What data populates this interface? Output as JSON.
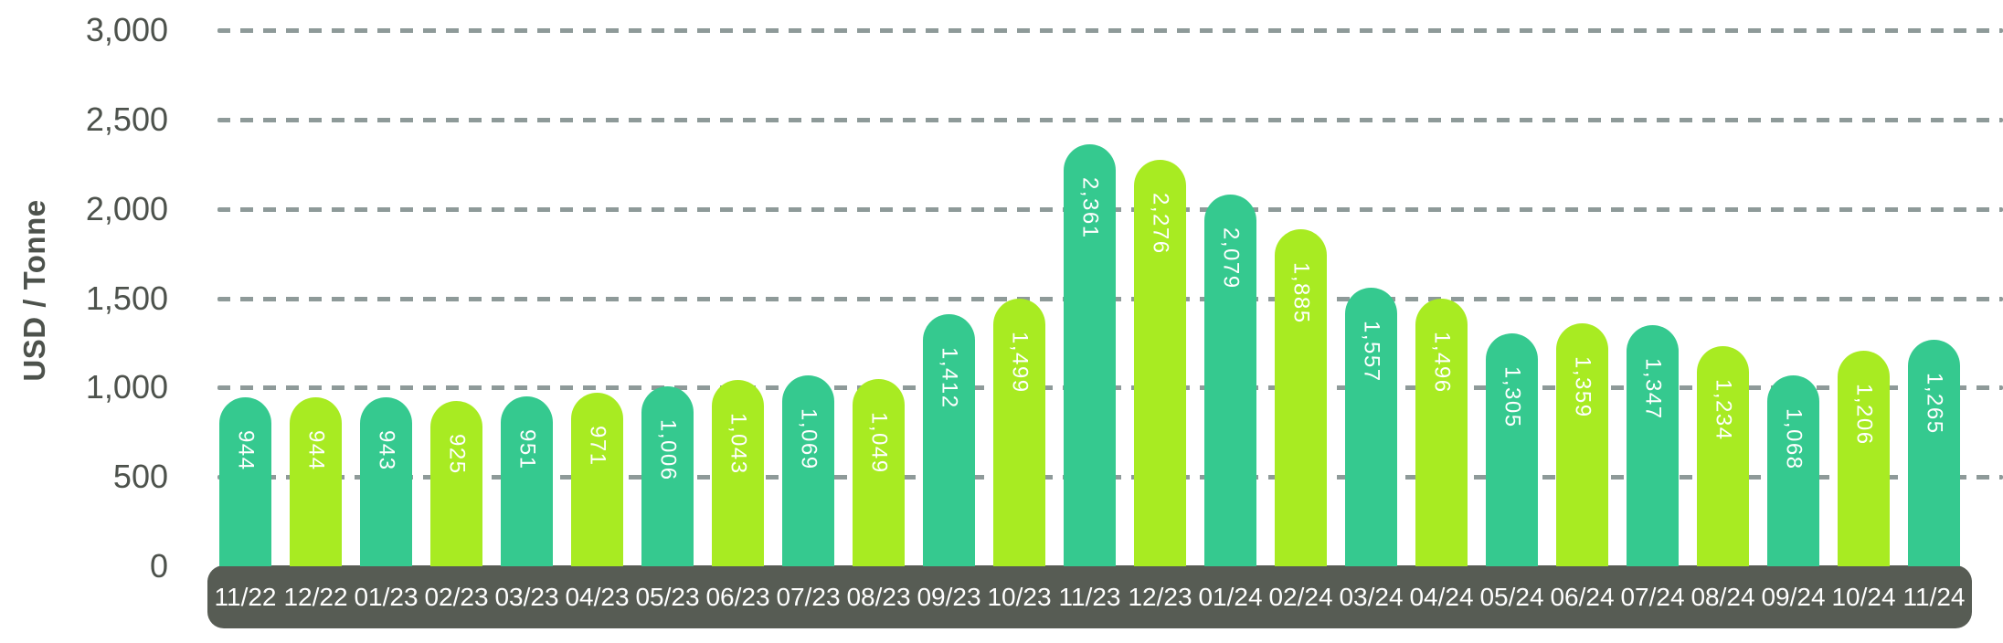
{
  "chart_data": {
    "type": "bar",
    "title": "",
    "xlabel": "",
    "ylabel": "USD / Tonne",
    "categories": [
      "11/22",
      "12/22",
      "01/23",
      "02/23",
      "03/23",
      "04/23",
      "05/23",
      "06/23",
      "07/23",
      "08/23",
      "09/23",
      "10/23",
      "11/23",
      "12/23",
      "01/24",
      "02/24",
      "03/24",
      "04/24",
      "05/24",
      "06/24",
      "07/24",
      "08/24",
      "09/24",
      "10/24",
      "11/24"
    ],
    "values": [
      944,
      944,
      943,
      925,
      951,
      971,
      1006,
      1043,
      1069,
      1049,
      1412,
      1499,
      2361,
      2276,
      2079,
      1885,
      1557,
      1496,
      1305,
      1359,
      1347,
      1234,
      1068,
      1206,
      1265
    ],
    "value_labels": [
      "944",
      "944",
      "943",
      "925",
      "951",
      "971",
      "1,006",
      "1,043",
      "1,069",
      "1,049",
      "1,412",
      "1,499",
      "2,361",
      "2,276",
      "2,079",
      "1,885",
      "1,557",
      "1,496",
      "1,305",
      "1,359",
      "1,347",
      "1,234",
      "1,068",
      "1,206",
      "1,265"
    ],
    "ytick_values": [
      0,
      500,
      1000,
      1500,
      2000,
      2500,
      3000
    ],
    "ytick_labels": [
      "0",
      "500",
      "1,000",
      "1,500",
      "2,000",
      "2,500",
      "3,000"
    ],
    "ylim": [
      0,
      3000
    ],
    "grid": "horizontal dashed gridlines at 500-unit steps, drawn behind bars",
    "legend": "none",
    "colors": {
      "bar_alternating": [
        "#35C98F",
        "#A8EB22"
      ],
      "value_label_text": "#FFFFFF",
      "axis_strip_background": "#575C54",
      "axis_strip_text": "#FFFFFF",
      "gridline": "#8E9A99",
      "tick_text": "#4D524C",
      "background": "#FFFFFF"
    }
  }
}
